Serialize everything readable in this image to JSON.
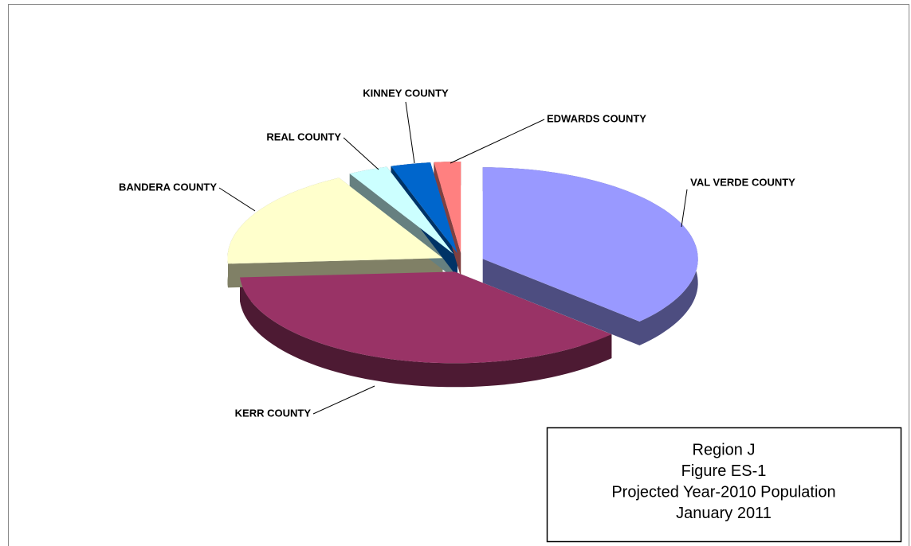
{
  "chart_data": {
    "type": "pie3d",
    "categories": [
      "VAL VERDE COUNTY",
      "KERR COUNTY",
      "BANDERA COUNTY",
      "REAL COUNTY",
      "KINNEY COUNTY",
      "EDWARDS COUNTY"
    ],
    "values": [
      37,
      37,
      18,
      3,
      3,
      2
    ],
    "colors": [
      "#9999ff",
      "#993366",
      "#ffffcc",
      "#ccffff",
      "#0066cc",
      "#ff8080"
    ],
    "caption": [
      "Region J",
      "Figure ES-1",
      "Projected Year-2010 Population",
      "January 2011"
    ]
  }
}
